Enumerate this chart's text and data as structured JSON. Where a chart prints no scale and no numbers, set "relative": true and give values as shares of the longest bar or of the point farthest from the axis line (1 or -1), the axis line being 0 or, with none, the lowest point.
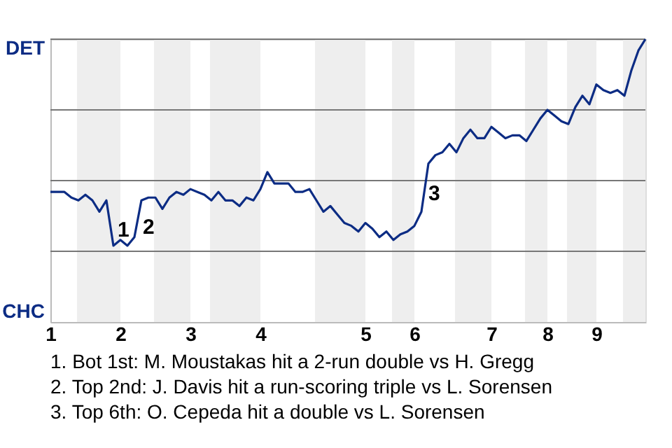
{
  "chart_data": {
    "type": "line",
    "relative": true,
    "categories": [
      "1",
      null,
      null,
      null,
      null,
      null,
      null,
      null,
      null,
      null,
      "2",
      null,
      null,
      null,
      null,
      null,
      null,
      null,
      null,
      null,
      "3",
      null,
      null,
      null,
      null,
      null,
      null,
      null,
      null,
      null,
      "4",
      null,
      null,
      null,
      null,
      null,
      null,
      null,
      null,
      null,
      null,
      null,
      null,
      null,
      null,
      "5",
      null,
      null,
      null,
      null,
      null,
      null,
      "6",
      null,
      null,
      null,
      null,
      null,
      null,
      null,
      null,
      null,
      null,
      "7",
      null,
      null,
      null,
      null,
      null,
      null,
      null,
      "8",
      null,
      null,
      null,
      null,
      null,
      null,
      "9",
      null,
      null,
      null,
      null,
      null,
      null,
      null
    ],
    "series": [
      {
        "color": "#0c2c84",
        "values": [
          0.46,
          0.46,
          0.46,
          0.44,
          0.43,
          0.45,
          0.43,
          0.39,
          0.43,
          0.27,
          0.29,
          0.27,
          0.3,
          0.43,
          0.44,
          0.44,
          0.4,
          0.44,
          0.46,
          0.45,
          0.47,
          0.46,
          0.45,
          0.43,
          0.46,
          0.43,
          0.43,
          0.41,
          0.44,
          0.43,
          0.47,
          0.53,
          0.49,
          0.49,
          0.49,
          0.46,
          0.46,
          0.47,
          0.43,
          0.39,
          0.41,
          0.38,
          0.35,
          0.34,
          0.32,
          0.35,
          0.33,
          0.3,
          0.32,
          0.29,
          0.31,
          0.32,
          0.34,
          0.39,
          0.56,
          0.59,
          0.6,
          0.63,
          0.6,
          0.65,
          0.68,
          0.65,
          0.65,
          0.69,
          0.67,
          0.65,
          0.66,
          0.66,
          0.64,
          0.68,
          0.72,
          0.75,
          0.73,
          0.71,
          0.7,
          0.76,
          0.8,
          0.77,
          0.84,
          0.82,
          0.81,
          0.82,
          0.8,
          0.89,
          0.96,
          1.0
        ]
      }
    ],
    "marker": "none",
    "line_style": "solid",
    "ref_lines": [
      {
        "axis": "y",
        "value": 0.25,
        "label": null,
        "color": "#777777"
      },
      {
        "axis": "y",
        "value": 0.5,
        "label": null,
        "color": "#777777"
      },
      {
        "axis": "y",
        "value": 0.75,
        "label": null,
        "color": "#777777"
      },
      {
        "axis": "y",
        "value": 1.0,
        "label": null,
        "color": "#777777"
      }
    ],
    "annotations": [
      "DET",
      "CHC",
      "1",
      "2",
      "3",
      "1. Bot 1st: M. Moustakas hit a 2-run double vs H. Gregg",
      "2. Top 2nd: J. Davis hit a run-scoring triple vs L. Sorensen",
      "3. Top 6th: O. Cepeda hit a double vs L. Sorensen"
    ]
  }
}
